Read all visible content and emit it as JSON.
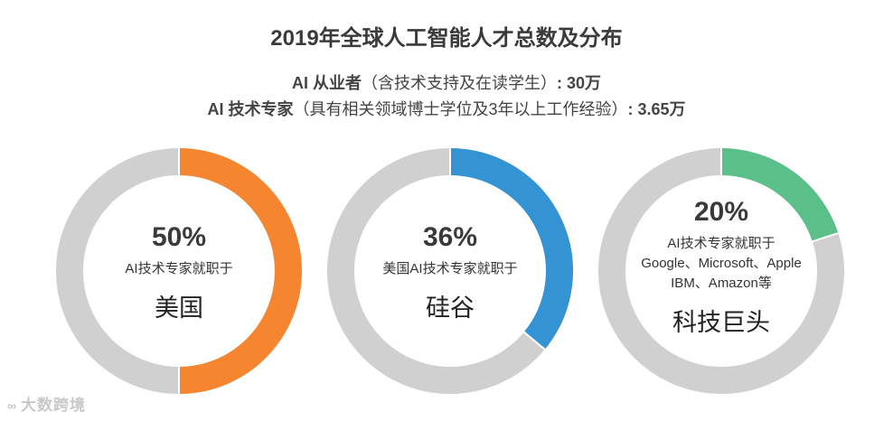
{
  "title": "2019年全球人工智能人才总数及分布",
  "subtitle_1": {
    "label": "AI 从业者",
    "note": "（含技术支持及在读学生）",
    "value": ": 30万"
  },
  "subtitle_2": {
    "label": "AI 技术专家",
    "note": "（具有相关领域博士学位及3年以上工作经验）",
    "value": ": 3.65万"
  },
  "watermark": "大数跨境",
  "colors": {
    "track": "#d0d0d0",
    "us": "#f5862f",
    "silicon_valley": "#3494d3",
    "tech_giants": "#5bbf89"
  },
  "chart_data": [
    {
      "type": "pie",
      "values": [
        50,
        50
      ],
      "percent_label": "50%",
      "description": [
        "AI技术专家就职于"
      ],
      "region": "美国",
      "color": "#f5862f"
    },
    {
      "type": "pie",
      "values": [
        36,
        64
      ],
      "percent_label": "36%",
      "description": [
        "美国AI技术专家就职于"
      ],
      "region": "硅谷",
      "color": "#3494d3"
    },
    {
      "type": "pie",
      "values": [
        20,
        80
      ],
      "percent_label": "20%",
      "description": [
        "AI技术专家就职于",
        "Google、Microsoft、Apple",
        "IBM、Amazon等"
      ],
      "region": "科技巨头",
      "color": "#5bbf89"
    }
  ]
}
